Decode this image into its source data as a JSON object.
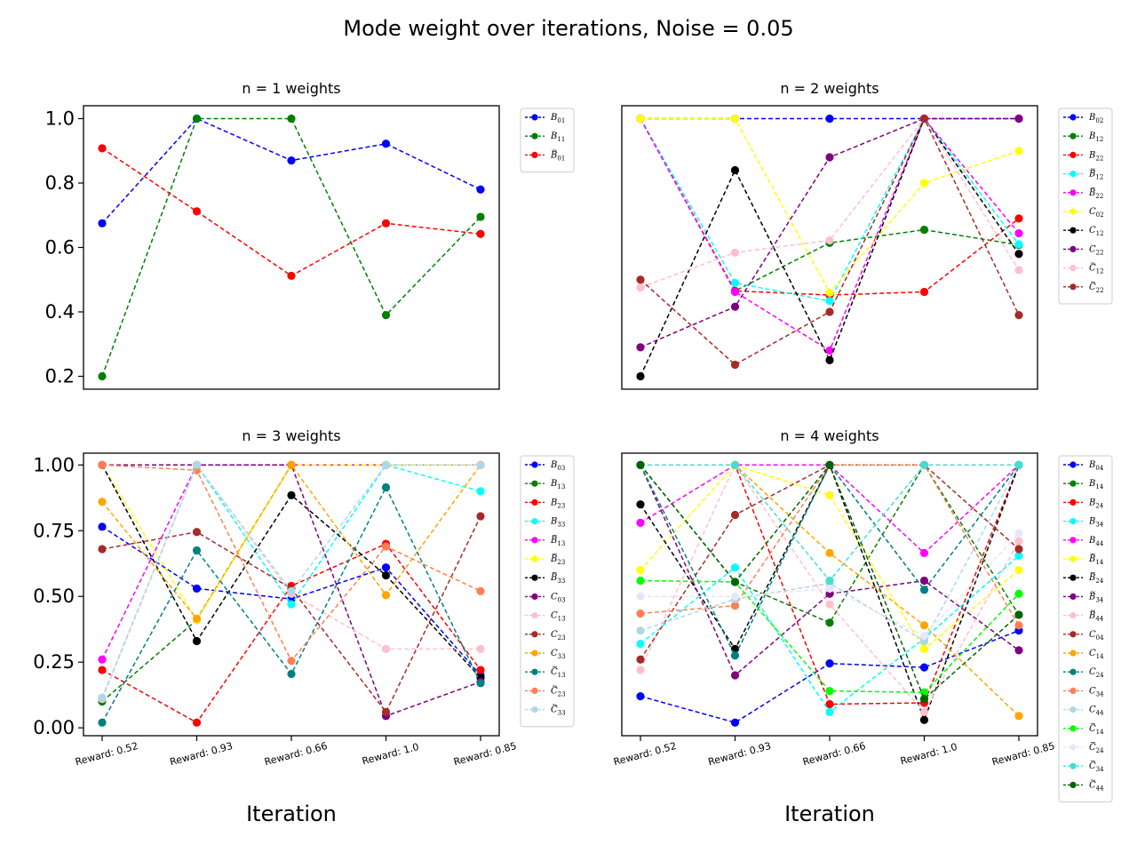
{
  "figure": {
    "suptitle": "Mode weight over iterations, Noise = 0.05"
  },
  "chart_data": [
    {
      "type": "line",
      "title": "n = 1 weights",
      "xlabel": "",
      "categories": [
        "Reward: 0.52",
        "Reward: 0.93",
        "Reward: 0.66",
        "Reward: 1.0",
        "Reward: 0.85"
      ],
      "show_xticks": false,
      "show_yticks": true,
      "ylim": [
        0.16,
        1.04
      ],
      "yticks": [
        0.2,
        0.4,
        0.6,
        0.8,
        1.0
      ],
      "ytick_labels": [
        "0.2",
        "0.4",
        "0.6",
        "0.8",
        "1.0"
      ],
      "legend_placement": "outside-right",
      "series": [
        {
          "name": "B01",
          "label": {
            "base": "B",
            "tilde": false,
            "sub": "01"
          },
          "color": "#0000ff",
          "values": [
            0.675,
            1.0,
            0.87,
            0.922,
            0.78
          ]
        },
        {
          "name": "B11",
          "label": {
            "base": "B",
            "tilde": false,
            "sub": "11"
          },
          "color": "#008000",
          "values": [
            0.2,
            1.0,
            1.0,
            0.39,
            0.695
          ]
        },
        {
          "name": "B~01",
          "label": {
            "base": "B",
            "tilde": true,
            "sub": "01"
          },
          "color": "#ff0000",
          "values": [
            0.908,
            0.712,
            0.512,
            0.675,
            0.642
          ]
        }
      ]
    },
    {
      "type": "line",
      "title": "n = 2 weights",
      "xlabel": "",
      "categories": [
        "Reward: 0.52",
        "Reward: 0.93",
        "Reward: 0.66",
        "Reward: 1.0",
        "Reward: 0.85"
      ],
      "show_xticks": false,
      "show_yticks": false,
      "ylim": [
        0.16,
        1.04
      ],
      "yticks": [],
      "ytick_labels": [],
      "legend_placement": "outside-right",
      "series": [
        {
          "name": "B02",
          "label": {
            "base": "B",
            "tilde": false,
            "sub": "02"
          },
          "color": "#0000ff",
          "values": [
            1.0,
            1.0,
            1.0,
            1.0,
            1.0
          ]
        },
        {
          "name": "B12",
          "label": {
            "base": "B",
            "tilde": false,
            "sub": "12"
          },
          "color": "#008000",
          "values": [
            1.0,
            0.465,
            0.614,
            0.655,
            0.608
          ]
        },
        {
          "name": "B22",
          "label": {
            "base": "B",
            "tilde": false,
            "sub": "22"
          },
          "color": "#ff0000",
          "values": [
            1.0,
            0.465,
            0.452,
            0.462,
            0.69
          ]
        },
        {
          "name": "B~12",
          "label": {
            "base": "B",
            "tilde": true,
            "sub": "12"
          },
          "color": "#00ffff",
          "values": [
            1.0,
            0.49,
            0.434,
            1.0,
            0.61
          ]
        },
        {
          "name": "B~22",
          "label": {
            "base": "B",
            "tilde": true,
            "sub": "22"
          },
          "color": "#ff00ff",
          "values": [
            1.0,
            0.462,
            0.28,
            1.0,
            0.644
          ]
        },
        {
          "name": "C02",
          "label": {
            "base": "C",
            "tilde": false,
            "sub": "02"
          },
          "color": "#ffff00",
          "values": [
            1.0,
            1.0,
            0.46,
            0.8,
            0.9
          ]
        },
        {
          "name": "C12",
          "label": {
            "base": "C",
            "tilde": false,
            "sub": "12"
          },
          "color": "#000000",
          "values": [
            0.2,
            0.84,
            0.25,
            1.0,
            0.58
          ]
        },
        {
          "name": "C22",
          "label": {
            "base": "C",
            "tilde": false,
            "sub": "22"
          },
          "color": "#800080",
          "values": [
            0.29,
            0.416,
            0.88,
            1.0,
            1.0
          ]
        },
        {
          "name": "C~12",
          "label": {
            "base": "C",
            "tilde": true,
            "sub": "12"
          },
          "color": "#ffc0cb",
          "values": [
            0.476,
            0.584,
            0.622,
            1.0,
            0.53
          ]
        },
        {
          "name": "C~22",
          "label": {
            "base": "C",
            "tilde": true,
            "sub": "22"
          },
          "color": "#a52a2a",
          "values": [
            0.5,
            0.236,
            0.4,
            1.0,
            0.39
          ]
        }
      ]
    },
    {
      "type": "line",
      "title": "n = 3 weights",
      "xlabel": "Iteration",
      "categories": [
        "Reward: 0.52",
        "Reward: 0.93",
        "Reward: 0.66",
        "Reward: 1.0",
        "Reward: 0.85"
      ],
      "show_xticks": true,
      "show_yticks": true,
      "ylim": [
        -0.03,
        1.045
      ],
      "yticks": [
        0.0,
        0.25,
        0.5,
        0.75,
        1.0
      ],
      "ytick_labels": [
        "0.00",
        "0.25",
        "0.50",
        "0.75",
        "1.00"
      ],
      "legend_placement": "outside-right",
      "series": [
        {
          "name": "B03",
          "label": {
            "base": "B",
            "tilde": false,
            "sub": "03"
          },
          "color": "#0000ff",
          "values": [
            0.765,
            0.53,
            0.49,
            0.61,
            0.2
          ]
        },
        {
          "name": "B13",
          "label": {
            "base": "B",
            "tilde": false,
            "sub": "13"
          },
          "color": "#008000",
          "values": [
            0.1,
            0.41,
            1.0,
            1.0,
            1.0
          ]
        },
        {
          "name": "B23",
          "label": {
            "base": "B",
            "tilde": false,
            "sub": "23"
          },
          "color": "#ff0000",
          "values": [
            0.22,
            0.02,
            0.54,
            0.7,
            0.22
          ]
        },
        {
          "name": "B33",
          "label": {
            "base": "B",
            "tilde": false,
            "sub": "33"
          },
          "color": "#00ffff",
          "values": [
            0.11,
            1.0,
            0.47,
            1.0,
            0.9
          ]
        },
        {
          "name": "B~13",
          "label": {
            "base": "B",
            "tilde": true,
            "sub": "13"
          },
          "color": "#ff00ff",
          "values": [
            0.26,
            1.0,
            1.0,
            1.0,
            1.0
          ]
        },
        {
          "name": "B~23",
          "label": {
            "base": "B",
            "tilde": true,
            "sub": "23"
          },
          "color": "#ffff00",
          "values": [
            1.0,
            0.41,
            1.0,
            1.0,
            1.0
          ]
        },
        {
          "name": "B~33",
          "label": {
            "base": "B",
            "tilde": true,
            "sub": "33"
          },
          "color": "#000000",
          "values": [
            1.0,
            0.33,
            0.885,
            0.58,
            0.19
          ]
        },
        {
          "name": "C03",
          "label": {
            "base": "C",
            "tilde": false,
            "sub": "03"
          },
          "color": "#800080",
          "values": [
            1.0,
            1.0,
            1.0,
            0.045,
            0.175
          ]
        },
        {
          "name": "C13",
          "label": {
            "base": "C",
            "tilde": false,
            "sub": "13"
          },
          "color": "#ffc0cb",
          "values": [
            0.11,
            1.0,
            0.51,
            0.3,
            0.3
          ]
        },
        {
          "name": "C23",
          "label": {
            "base": "C",
            "tilde": false,
            "sub": "23"
          },
          "color": "#a52a2a",
          "values": [
            0.68,
            0.745,
            0.53,
            0.06,
            0.805
          ]
        },
        {
          "name": "C33",
          "label": {
            "base": "C",
            "tilde": false,
            "sub": "33"
          },
          "color": "#ffa500",
          "values": [
            0.86,
            0.415,
            1.0,
            0.505,
            1.0
          ]
        },
        {
          "name": "C~13",
          "label": {
            "base": "C",
            "tilde": true,
            "sub": "13"
          },
          "color": "#008080",
          "values": [
            0.02,
            0.675,
            0.205,
            0.915,
            0.17
          ]
        },
        {
          "name": "C~23",
          "label": {
            "base": "C",
            "tilde": true,
            "sub": "23"
          },
          "color": "#ff7f50",
          "values": [
            1.0,
            0.98,
            0.255,
            0.69,
            0.52
          ]
        },
        {
          "name": "C~33",
          "label": {
            "base": "C",
            "tilde": true,
            "sub": "33"
          },
          "color": "#add8e6",
          "values": [
            0.115,
            1.0,
            0.52,
            1.0,
            1.0
          ]
        }
      ]
    },
    {
      "type": "line",
      "title": "n = 4 weights",
      "xlabel": "Iteration",
      "categories": [
        "Reward: 0.52",
        "Reward: 0.93",
        "Reward: 0.66",
        "Reward: 1.0",
        "Reward: 0.85"
      ],
      "show_xticks": true,
      "show_yticks": false,
      "ylim": [
        -0.03,
        1.045
      ],
      "yticks": [],
      "ytick_labels": [],
      "legend_placement": "outside-right",
      "series": [
        {
          "name": "B04",
          "label": {
            "base": "B",
            "tilde": false,
            "sub": "04"
          },
          "color": "#0000ff",
          "values": [
            0.12,
            0.02,
            0.245,
            0.23,
            0.37
          ]
        },
        {
          "name": "B14",
          "label": {
            "base": "B",
            "tilde": false,
            "sub": "14"
          },
          "color": "#008000",
          "values": [
            1.0,
            0.555,
            0.4,
            1.0,
            0.43
          ]
        },
        {
          "name": "B24",
          "label": {
            "base": "B",
            "tilde": false,
            "sub": "24"
          },
          "color": "#ff0000",
          "values": [
            1.0,
            1.0,
            0.09,
            0.095,
            1.0
          ]
        },
        {
          "name": "B34",
          "label": {
            "base": "B",
            "tilde": false,
            "sub": "34"
          },
          "color": "#00ffff",
          "values": [
            0.32,
            0.61,
            0.06,
            0.34,
            0.655
          ]
        },
        {
          "name": "B44",
          "label": {
            "base": "B",
            "tilde": false,
            "sub": "44"
          },
          "color": "#ff00ff",
          "values": [
            0.78,
            1.0,
            1.0,
            0.665,
            1.0
          ]
        },
        {
          "name": "B~14",
          "label": {
            "base": "B",
            "tilde": true,
            "sub": "14"
          },
          "color": "#ffff00",
          "values": [
            0.6,
            1.0,
            0.885,
            0.3,
            0.6
          ]
        },
        {
          "name": "B~24",
          "label": {
            "base": "B",
            "tilde": true,
            "sub": "24"
          },
          "color": "#000000",
          "values": [
            0.85,
            0.3,
            1.0,
            0.03,
            1.0
          ]
        },
        {
          "name": "B~34",
          "label": {
            "base": "B",
            "tilde": true,
            "sub": "34"
          },
          "color": "#800080",
          "values": [
            1.0,
            0.2,
            0.51,
            0.56,
            0.295
          ]
        },
        {
          "name": "B~44",
          "label": {
            "base": "B",
            "tilde": true,
            "sub": "44"
          },
          "color": "#ffc0cb",
          "values": [
            0.22,
            1.0,
            0.47,
            0.06,
            0.71
          ]
        },
        {
          "name": "C04",
          "label": {
            "base": "C",
            "tilde": false,
            "sub": "04"
          },
          "color": "#a52a2a",
          "values": [
            0.26,
            0.81,
            1.0,
            1.0,
            0.68
          ]
        },
        {
          "name": "C14",
          "label": {
            "base": "C",
            "tilde": false,
            "sub": "14"
          },
          "color": "#ffa500",
          "values": [
            1.0,
            1.0,
            0.665,
            0.39,
            0.045
          ]
        },
        {
          "name": "C24",
          "label": {
            "base": "C",
            "tilde": false,
            "sub": "24"
          },
          "color": "#008080",
          "values": [
            1.0,
            0.275,
            1.0,
            0.525,
            1.0
          ]
        },
        {
          "name": "C34",
          "label": {
            "base": "C",
            "tilde": false,
            "sub": "34"
          },
          "color": "#ff7f50",
          "values": [
            0.435,
            0.465,
            1.0,
            1.0,
            0.39
          ]
        },
        {
          "name": "C44",
          "label": {
            "base": "C",
            "tilde": false,
            "sub": "44"
          },
          "color": "#add8e6",
          "values": [
            0.37,
            0.49,
            0.55,
            0.33,
            1.0
          ]
        },
        {
          "name": "C~14",
          "label": {
            "base": "C",
            "tilde": true,
            "sub": "14"
          },
          "color": "#00ff00",
          "values": [
            0.56,
            0.555,
            0.14,
            0.135,
            0.51
          ]
        },
        {
          "name": "C~24",
          "label": {
            "base": "C",
            "tilde": true,
            "sub": "24"
          },
          "color": "#e6e6fa",
          "values": [
            0.5,
            0.5,
            0.53,
            0.35,
            0.74
          ]
        },
        {
          "name": "C~34",
          "label": {
            "base": "C",
            "tilde": true,
            "sub": "34"
          },
          "color": "#40e0d0",
          "values": [
            1.0,
            1.0,
            0.56,
            1.0,
            1.0
          ]
        },
        {
          "name": "C~44",
          "label": {
            "base": "C",
            "tilde": true,
            "sub": "44"
          },
          "color": "#006400",
          "values": [
            1.0,
            0.555,
            1.0,
            0.11,
            0.43
          ]
        }
      ]
    }
  ]
}
